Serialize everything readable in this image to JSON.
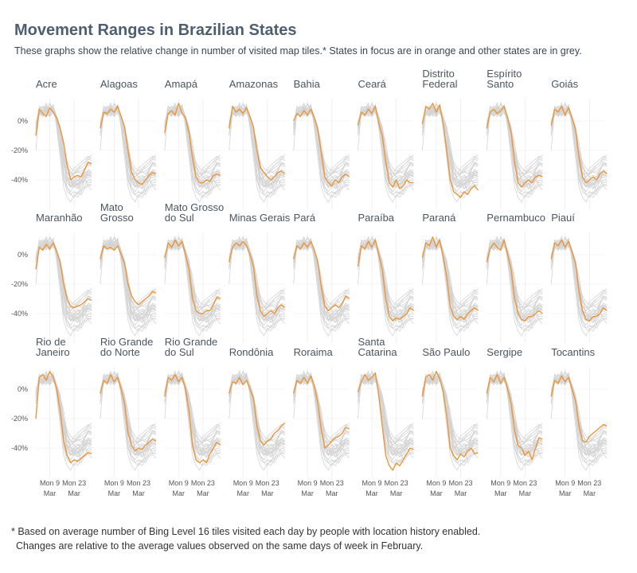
{
  "title": "Movement Ranges in Brazilian States",
  "subtitle": "These graphs show the relative change in number of visited map tiles.* States in focus are in orange and other states are in grey.",
  "footnote": [
    "* Based on average number of Bing Level 16 tiles visited each day by people with location history enabled.",
    "Changes are relative to the average values observed on the same days of week in February."
  ],
  "shared_axes": {
    "categories": [
      null,
      null,
      null,
      null,
      "Mon 9",
      null,
      null,
      null,
      null,
      null,
      null,
      "Mon 23",
      null,
      null,
      null,
      null,
      null
    ],
    "month": "Mar",
    "ylim": [
      -60,
      15
    ],
    "yticks": [
      {
        "value": 0,
        "label": "0%"
      },
      {
        "value": -20,
        "label": "-20%"
      },
      {
        "value": -40,
        "label": "-40%"
      }
    ],
    "other_color": "#d4d4d4",
    "grid": true
  },
  "chart_data": [
    {
      "type": "line",
      "title": [
        "Acre"
      ],
      "color": "#e8963a",
      "values": [
        -10,
        8,
        5,
        3,
        9,
        6,
        2,
        -5,
        -15,
        -30,
        -40,
        -38,
        -37,
        -38,
        -33,
        -28,
        -29
      ]
    },
    {
      "type": "line",
      "title": [
        "Alagoas"
      ],
      "color": "#e8963a",
      "values": [
        -5,
        6,
        5,
        8,
        6,
        10,
        3,
        -4,
        -20,
        -35,
        -40,
        -42,
        -43,
        -40,
        -37,
        -35,
        -36
      ]
    },
    {
      "type": "line",
      "title": [
        "Amapá"
      ],
      "color": "#e8963a",
      "values": [
        -8,
        5,
        7,
        4,
        12,
        5,
        2,
        -8,
        -25,
        -38,
        -42,
        -42,
        -40,
        -41,
        -37,
        -36,
        -37
      ]
    },
    {
      "type": "line",
      "title": [
        "Amazonas"
      ],
      "color": "#e8963a",
      "values": [
        -5,
        10,
        6,
        8,
        5,
        9,
        3,
        -4,
        -20,
        -32,
        -35,
        -38,
        -40,
        -38,
        -35,
        -34,
        -36
      ]
    },
    {
      "type": "line",
      "title": [
        "Bahia"
      ],
      "color": "#e8963a",
      "values": [
        0,
        5,
        3,
        7,
        4,
        8,
        2,
        -6,
        -22,
        -38,
        -42,
        -44,
        -40,
        -42,
        -38,
        -36,
        -38
      ]
    },
    {
      "type": "line",
      "title": [
        "Ceará"
      ],
      "color": "#e8963a",
      "values": [
        -3,
        6,
        4,
        8,
        5,
        10,
        -2,
        -10,
        -28,
        -42,
        -45,
        -40,
        -46,
        -44,
        -40,
        -42,
        -42
      ]
    },
    {
      "type": "line",
      "title": [
        "Distrito",
        "Federal"
      ],
      "color": "#e8963a",
      "values": [
        -2,
        10,
        8,
        12,
        6,
        11,
        -3,
        -20,
        -40,
        -48,
        -50,
        -52,
        -48,
        -50,
        -46,
        -44,
        -47
      ]
    },
    {
      "type": "line",
      "title": [
        "Espírito",
        "Santo"
      ],
      "color": "#e8963a",
      "values": [
        -5,
        6,
        8,
        5,
        7,
        10,
        2,
        -8,
        -28,
        -42,
        -45,
        -42,
        -40,
        -42,
        -38,
        -37,
        -38
      ]
    },
    {
      "type": "line",
      "title": [
        "Goiás"
      ],
      "color": "#e8963a",
      "values": [
        -3,
        8,
        6,
        10,
        4,
        9,
        2,
        -6,
        -25,
        -38,
        -42,
        -40,
        -38,
        -40,
        -36,
        -34,
        -36
      ]
    },
    {
      "type": "line",
      "title": [
        "Maranhão"
      ],
      "color": "#e8963a",
      "values": [
        -10,
        5,
        3,
        7,
        4,
        8,
        2,
        -5,
        -20,
        -30,
        -35,
        -36,
        -35,
        -34,
        -32,
        -30,
        -31
      ]
    },
    {
      "type": "line",
      "title": [
        "Mato",
        "Grosso"
      ],
      "color": "#e8963a",
      "values": [
        -3,
        6,
        4,
        5,
        3,
        6,
        0,
        -6,
        -20,
        -28,
        -32,
        -34,
        -32,
        -30,
        -28,
        -25,
        -26
      ]
    },
    {
      "type": "line",
      "title": [
        "Mato Grosso",
        "do Sul"
      ],
      "color": "#e8963a",
      "values": [
        -2,
        8,
        5,
        10,
        6,
        9,
        0,
        -10,
        -30,
        -38,
        -40,
        -40,
        -38,
        -38,
        -34,
        -29,
        -30
      ]
    },
    {
      "type": "line",
      "title": [
        "Minas Gerais"
      ],
      "color": "#e8963a",
      "values": [
        -5,
        5,
        8,
        6,
        9,
        6,
        0,
        -8,
        -28,
        -38,
        -42,
        -40,
        -38,
        -40,
        -36,
        -34,
        -36
      ]
    },
    {
      "type": "line",
      "title": [
        "Pará"
      ],
      "color": "#e8963a",
      "values": [
        -3,
        6,
        4,
        8,
        5,
        9,
        3,
        -5,
        -22,
        -35,
        -38,
        -36,
        -34,
        -36,
        -33,
        -28,
        -30
      ]
    },
    {
      "type": "line",
      "title": [
        "Paraíba"
      ],
      "color": "#e8963a",
      "values": [
        -8,
        6,
        4,
        9,
        5,
        10,
        0,
        -10,
        -30,
        -42,
        -45,
        -43,
        -44,
        -42,
        -40,
        -36,
        -38
      ]
    },
    {
      "type": "line",
      "title": [
        "Paraná"
      ],
      "color": "#e8963a",
      "values": [
        -2,
        8,
        6,
        12,
        5,
        10,
        -2,
        -15,
        -35,
        -42,
        -44,
        -42,
        -44,
        -40,
        -38,
        -36,
        -38
      ]
    },
    {
      "type": "line",
      "title": [
        "Pernambuco"
      ],
      "color": "#e8963a",
      "values": [
        -5,
        4,
        8,
        5,
        3,
        10,
        0,
        -10,
        -30,
        -40,
        -44,
        -45,
        -42,
        -42,
        -40,
        -38,
        -40
      ]
    },
    {
      "type": "line",
      "title": [
        "Piauí"
      ],
      "color": "#e8963a",
      "values": [
        -3,
        8,
        6,
        10,
        5,
        9,
        2,
        -6,
        -25,
        -38,
        -44,
        -45,
        -42,
        -42,
        -40,
        -36,
        -38
      ]
    },
    {
      "type": "line",
      "title": [
        "Rio de",
        "Janeiro"
      ],
      "color": "#e8963a",
      "values": [
        -20,
        8,
        10,
        6,
        12,
        8,
        0,
        -15,
        -35,
        -45,
        -50,
        -48,
        -49,
        -47,
        -45,
        -43,
        -44
      ]
    },
    {
      "type": "line",
      "title": [
        "Rio Grande",
        "do Norte"
      ],
      "color": "#e8963a",
      "values": [
        -3,
        6,
        4,
        10,
        5,
        8,
        0,
        -10,
        -30,
        -38,
        -42,
        -40,
        -41,
        -38,
        -36,
        -34,
        -35
      ]
    },
    {
      "type": "line",
      "title": [
        "Rio Grande",
        "do Sul"
      ],
      "color": "#e8963a",
      "values": [
        -5,
        8,
        6,
        10,
        5,
        8,
        0,
        -15,
        -38,
        -48,
        -50,
        -48,
        -50,
        -44,
        -40,
        -36,
        -38
      ]
    },
    {
      "type": "line",
      "title": [
        "Rondônia"
      ],
      "color": "#e8963a",
      "values": [
        -3,
        5,
        4,
        8,
        3,
        6,
        0,
        -6,
        -25,
        -35,
        -38,
        -35,
        -34,
        -30,
        -28,
        -25,
        -23
      ]
    },
    {
      "type": "line",
      "title": [
        "Roraima"
      ],
      "color": "#e8963a",
      "values": [
        -3,
        6,
        4,
        8,
        4,
        9,
        2,
        -10,
        -28,
        -40,
        -38,
        -35,
        -33,
        -32,
        -30,
        -26,
        -27
      ]
    },
    {
      "type": "line",
      "title": [
        "Santa",
        "Catarina"
      ],
      "color": "#e8963a",
      "values": [
        -2,
        5,
        10,
        6,
        8,
        11,
        -5,
        -25,
        -45,
        -52,
        -55,
        -50,
        -52,
        -48,
        -44,
        -40,
        -41
      ]
    },
    {
      "type": "line",
      "title": [
        "São Paulo"
      ],
      "color": "#e8963a",
      "values": [
        -5,
        8,
        10,
        6,
        12,
        7,
        -2,
        -18,
        -40,
        -45,
        -48,
        -44,
        -46,
        -42,
        -40,
        -44,
        -43
      ]
    },
    {
      "type": "line",
      "title": [
        "Sergipe"
      ],
      "color": "#e8963a",
      "values": [
        -3,
        8,
        5,
        10,
        4,
        8,
        0,
        -10,
        -28,
        -38,
        -40,
        -45,
        -42,
        -48,
        -40,
        -33,
        -34
      ]
    },
    {
      "type": "line",
      "title": [
        "Tocantins"
      ],
      "color": "#e8963a",
      "values": [
        -5,
        6,
        4,
        9,
        5,
        8,
        0,
        -8,
        -25,
        -35,
        -36,
        -32,
        -30,
        -28,
        -26,
        -24,
        -25
      ]
    }
  ]
}
